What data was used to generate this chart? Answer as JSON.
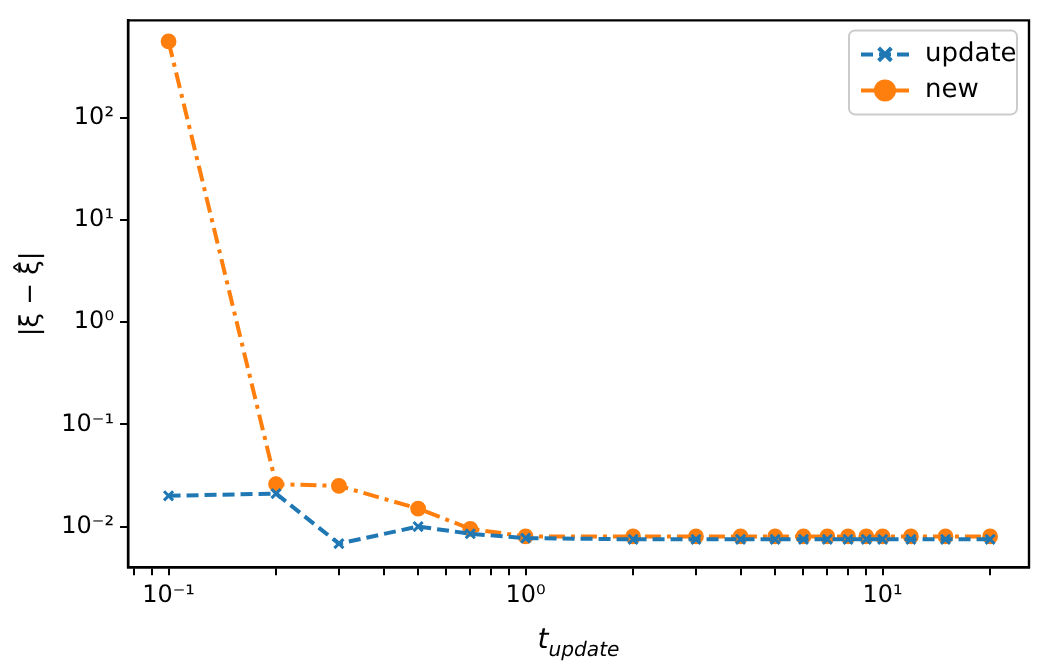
{
  "chart_data": {
    "type": "line",
    "xlabel": "t$_{update}$",
    "ylabel": "|ξ − ξ̂|",
    "log": "xy",
    "grid": false,
    "legend": "top right",
    "x": [
      0.1,
      0.2,
      0.3,
      0.5,
      0.7,
      1,
      2,
      3,
      4,
      5,
      6,
      7,
      8,
      9,
      10,
      12,
      15,
      20
    ],
    "series": [
      {
        "name": "update",
        "color": "#1f77b4",
        "marker": "cross",
        "line_style": "dashed",
        "values": [
          0.02,
          0.021,
          0.0068,
          0.01,
          0.0085,
          0.0077,
          0.0075,
          0.0075,
          0.0075,
          0.0075,
          0.0075,
          0.0075,
          0.0075,
          0.0075,
          0.0075,
          0.0075,
          0.0075,
          0.0075
        ]
      },
      {
        "name": "new",
        "color": "#ff7f0e",
        "marker": "circle",
        "line_style": "dashdot",
        "values": [
          560,
          0.026,
          0.025,
          0.015,
          0.0095,
          0.008,
          0.008,
          0.008,
          0.008,
          0.008,
          0.008,
          0.008,
          0.008,
          0.008,
          0.008,
          0.008,
          0.008,
          0.008
        ]
      }
    ],
    "xlim": [
      0.077,
      25.7
    ],
    "ylim": [
      0.004,
      900
    ],
    "xticks": [
      {
        "value": 0.08,
        "label": null
      },
      {
        "value": 0.09,
        "label": null
      },
      {
        "value": 0.1,
        "label": "10⁻¹"
      },
      {
        "value": 0.2,
        "label": null
      },
      {
        "value": 0.3,
        "label": null
      },
      {
        "value": 0.4,
        "label": null
      },
      {
        "value": 0.5,
        "label": null
      },
      {
        "value": 0.6,
        "label": null
      },
      {
        "value": 0.7,
        "label": null
      },
      {
        "value": 0.8,
        "label": null
      },
      {
        "value": 0.9,
        "label": null
      },
      {
        "value": 1,
        "label": "10⁰"
      },
      {
        "value": 2,
        "label": null
      },
      {
        "value": 3,
        "label": null
      },
      {
        "value": 4,
        "label": null
      },
      {
        "value": 5,
        "label": null
      },
      {
        "value": 6,
        "label": null
      },
      {
        "value": 7,
        "label": null
      },
      {
        "value": 8,
        "label": null
      },
      {
        "value": 9,
        "label": null
      },
      {
        "value": 10,
        "label": "10¹"
      },
      {
        "value": 20,
        "label": null
      }
    ],
    "yticks": [
      {
        "value": 0.01,
        "label": "10⁻²"
      },
      {
        "value": 0.1,
        "label": "10⁻¹"
      },
      {
        "value": 1,
        "label": "10⁰"
      },
      {
        "value": 10,
        "label": "10¹"
      },
      {
        "value": 100,
        "label": "10²"
      }
    ]
  }
}
